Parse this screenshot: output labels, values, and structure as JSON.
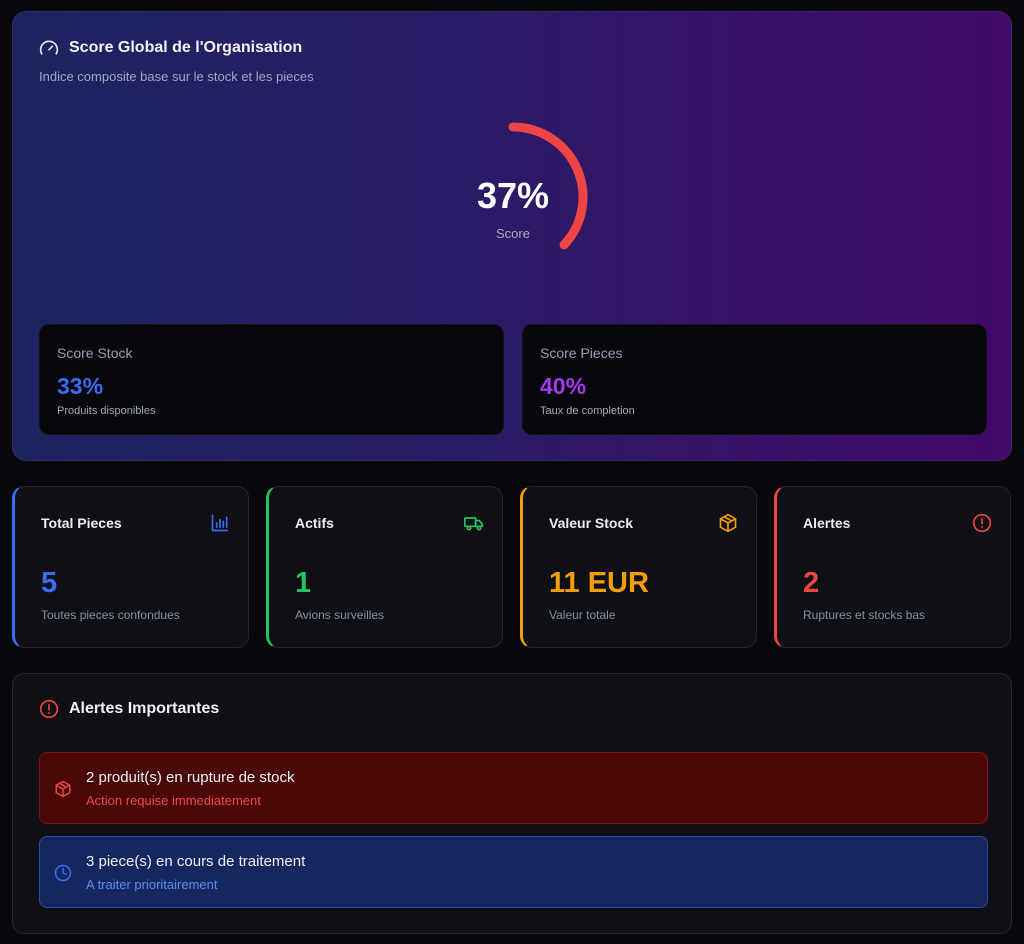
{
  "hero": {
    "title": "Score Global de l'Organisation",
    "subtitle": "Indice composite base sur le stock et les pieces",
    "icon": "gauge-icon",
    "gauge": {
      "value_text": "37%",
      "value": 0.37,
      "label": "Score",
      "color": "#ef4444"
    }
  },
  "subscores": [
    {
      "label": "Score Stock",
      "value": "33%",
      "desc": "Produits disponibles",
      "color": "#3b6cf6"
    },
    {
      "label": "Score Pieces",
      "value": "40%",
      "desc": "Taux de completion",
      "color": "#a03bf0"
    }
  ],
  "stats": [
    {
      "title": "Total Pieces",
      "value": "5",
      "desc": "Toutes pieces confondues",
      "color": "#3b6cf6",
      "icon": "bar-chart-icon"
    },
    {
      "title": "Actifs",
      "value": "1",
      "desc": "Avions surveilles",
      "color": "#22c55e",
      "icon": "truck-icon"
    },
    {
      "title": "Valeur Stock",
      "value": "11 EUR",
      "desc": "Valeur totale",
      "color": "#f59e0b",
      "icon": "package-icon"
    },
    {
      "title": "Alertes",
      "value": "2",
      "desc": "Ruptures et stocks bas",
      "color": "#ef4444",
      "icon": "alert-circle-icon"
    }
  ],
  "alerts": {
    "title": "Alertes Importantes",
    "icon": "alert-circle-icon",
    "items": [
      {
        "message": "2 produit(s) en rupture de stock",
        "sub": "Action requise immediatement",
        "icon": "package-icon",
        "color": "#ef4444"
      },
      {
        "message": "3 piece(s) en cours de traitement",
        "sub": "A traiter prioritairement",
        "icon": "clock-icon",
        "color": "#3b6cf6"
      }
    ]
  }
}
